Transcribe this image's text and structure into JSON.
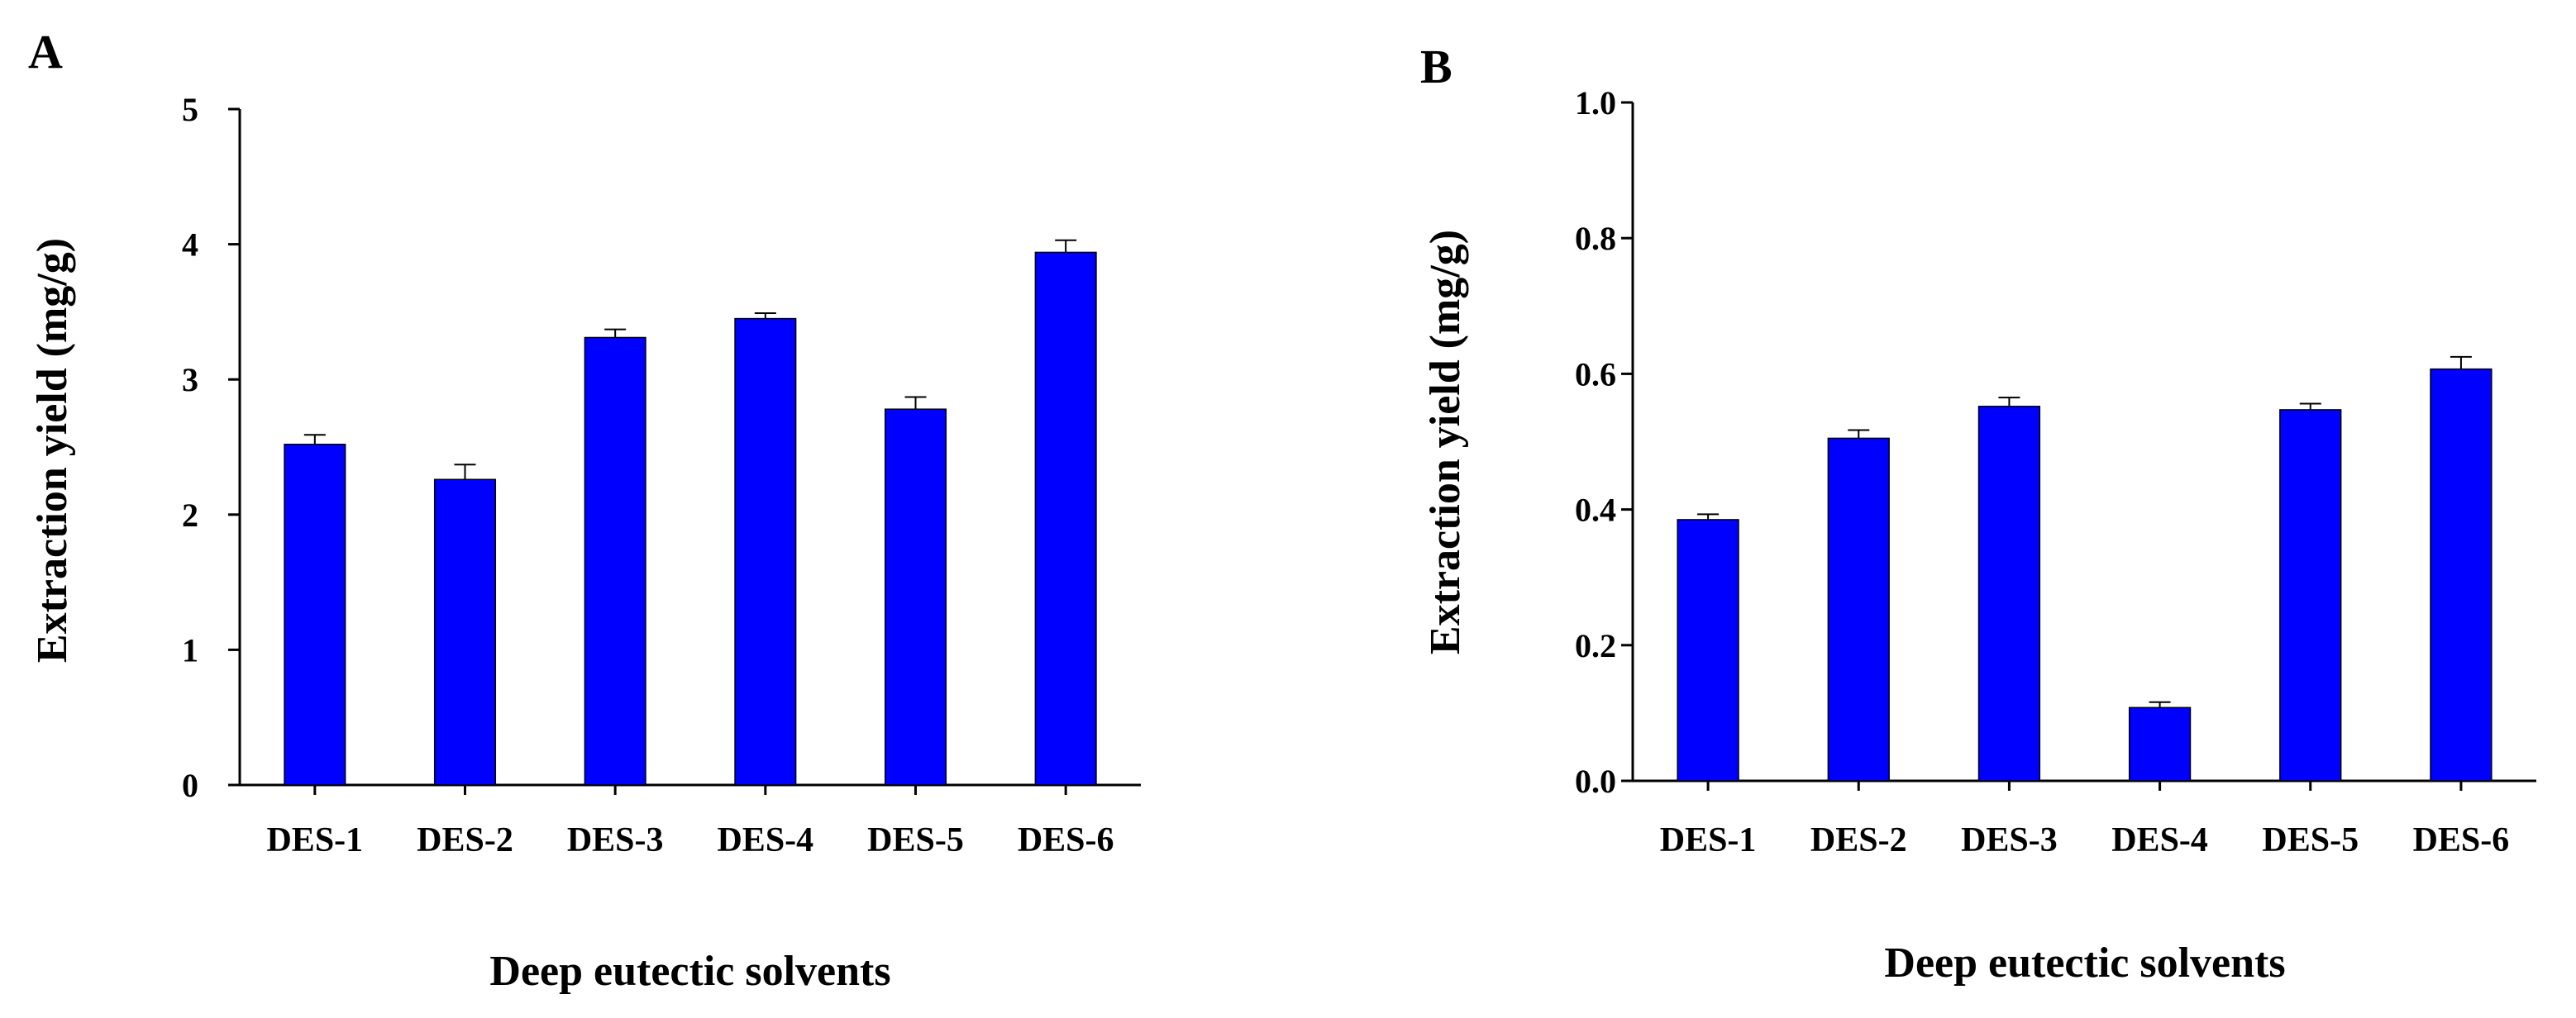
{
  "chart_data": [
    {
      "type": "bar",
      "panel_label": "A",
      "categories": [
        "DES-1",
        "DES-2",
        "DES-3",
        "DES-4",
        "DES-5",
        "DES-6"
      ],
      "values": [
        2.52,
        2.26,
        3.31,
        3.45,
        2.78,
        3.94
      ],
      "errors": [
        0.07,
        0.11,
        0.06,
        0.04,
        0.09,
        0.09
      ],
      "xlabel": "Deep eutectic solvents",
      "ylabel": "Extraction yield (mg/g)",
      "ylim": [
        0,
        5
      ],
      "yticks": [
        "0",
        "1",
        "2",
        "3",
        "4",
        "5"
      ],
      "grid": false,
      "color": "#0000ff"
    },
    {
      "type": "bar",
      "panel_label": "B",
      "categories": [
        "DES-1",
        "DES-2",
        "DES-3",
        "DES-4",
        "DES-5",
        "DES-6"
      ],
      "values": [
        0.385,
        0.505,
        0.552,
        0.108,
        0.547,
        0.607
      ],
      "errors": [
        0.008,
        0.012,
        0.013,
        0.008,
        0.009,
        0.018
      ],
      "xlabel": "Deep eutectic solvents",
      "ylabel": "Extraction yield (mg/g)",
      "ylim": [
        0,
        1.0
      ],
      "yticks": [
        "0.0",
        "0.2",
        "0.4",
        "0.6",
        "0.8",
        "1.0"
      ],
      "grid": false,
      "color": "#0000ff"
    }
  ]
}
